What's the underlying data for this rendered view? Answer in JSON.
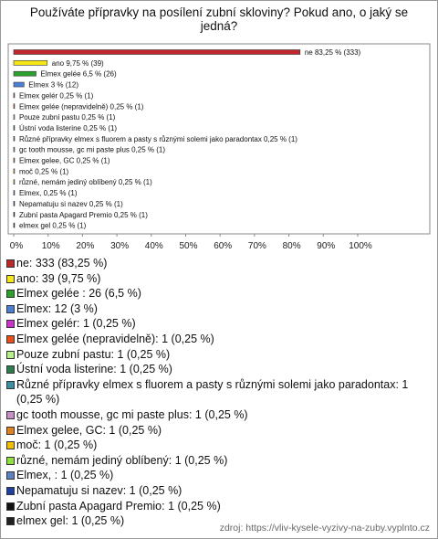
{
  "chart_data": {
    "type": "bar",
    "title": "Používáte přípravky na posílení zubní skloviny? Pokud ano, o jaký se jedná?",
    "values": [
      83.25,
      9.75,
      6.5,
      3,
      0.25,
      0.25,
      0.25,
      0.25,
      0.25,
      0.25,
      0.25,
      0.25,
      0.25,
      0.25,
      0.25,
      0.25,
      0.25
    ],
    "value_labels": [
      "ne 83,25 % (333)",
      "ano 9,75 % (39)",
      "Elmex gelée  6,5 % (26)",
      "Elmex 3 % (12)",
      "Elmex gelér 0,25 % (1)",
      "Elmex gelée (nepravidelně) 0,25 % (1)",
      "Pouze zubní pastu 0,25 % (1)",
      "Ústní voda listerine 0,25 % (1)",
      "Různé přípravky elmex s fluorem a pasty s různými solemi jako paradontax 0,25 % (1)",
      "gc tooth mousse, gc mi paste plus 0,25 % (1)",
      "Elmex gelee, GC 0,25 % (1)",
      "moč 0,25 % (1)",
      "různé, nemám jediný oblíbený 0,25 % (1)",
      "Elmex,  0,25 % (1)",
      "Nepamatuju si nazev 0,25 % (1)",
      "Zubní pasta Apagard Premio 0,25 % (1)",
      "elmex gel 0,25 % (1)"
    ],
    "legend_labels": [
      "ne: 333 (83,25 %)",
      "ano: 39 (9,75 %)",
      "Elmex gelée : 26 (6,5 %)",
      "Elmex: 12 (3 %)",
      "Elmex gelér: 1 (0,25 %)",
      "Elmex gelée (nepravidelně): 1 (0,25 %)",
      "Pouze zubní pastu: 1 (0,25 %)",
      "Ústní voda listerine: 1 (0,25 %)",
      "Různé přípravky elmex s fluorem a pasty s různými solemi jako paradontax: 1 (0,25 %)",
      "gc tooth mousse, gc mi paste plus: 1 (0,25 %)",
      "Elmex gelee, GC: 1 (0,25 %)",
      "moč: 1 (0,25 %)",
      "různé, nemám jediný oblíbený: 1 (0,25 %)",
      "Elmex, : 1 (0,25 %)",
      "Nepamatuju si nazev: 1 (0,25 %)",
      "Zubní pasta Apagard Premio: 1 (0,25 %)",
      "elmex gel: 1 (0,25 %)"
    ],
    "colors": [
      "#c0272d",
      "#f5e616",
      "#2ca02c",
      "#4a7fd4",
      "#cc33cc",
      "#e8501a",
      "#b8f08c",
      "#2e7d4f",
      "#3a8fa0",
      "#c890c8",
      "#e08020",
      "#f0c000",
      "#90e040",
      "#6080c0",
      "#2040a0",
      "#111111",
      "#222222"
    ],
    "xlim": [
      0,
      100
    ],
    "xticks": [
      {
        "value": 0,
        "label": "0%"
      },
      {
        "value": 10,
        "label": "10%"
      },
      {
        "value": 20,
        "label": "20%"
      },
      {
        "value": 30,
        "label": "30%"
      },
      {
        "value": 40,
        "label": "40%"
      },
      {
        "value": 50,
        "label": "50%"
      },
      {
        "value": 60,
        "label": "60%"
      },
      {
        "value": 70,
        "label": "70%"
      },
      {
        "value": 80,
        "label": "80%"
      },
      {
        "value": 90,
        "label": "90%"
      },
      {
        "value": 100,
        "label": "100%"
      }
    ],
    "source": "zdroj: https://vliv-kysele-vyzivy-na-zuby.vyplnto.cz"
  }
}
